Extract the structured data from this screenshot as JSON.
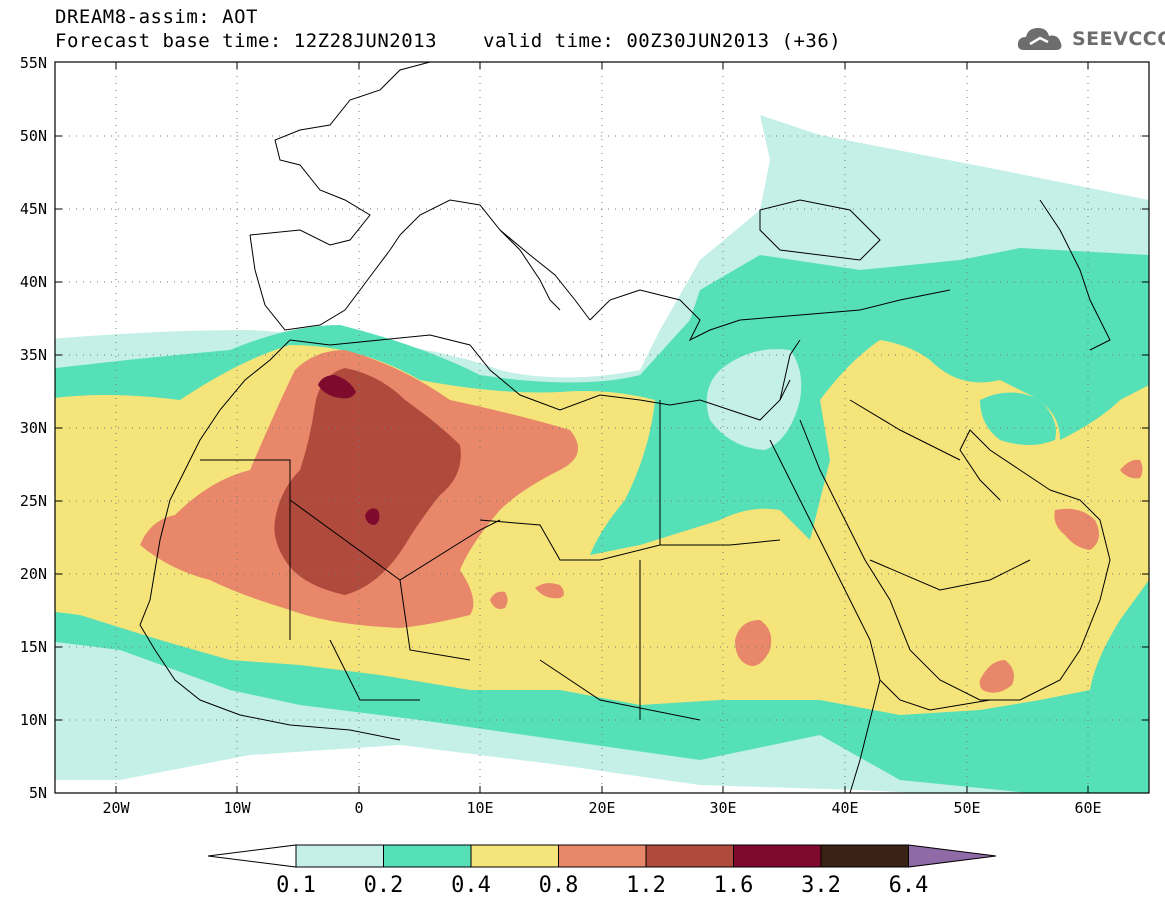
{
  "header": {
    "line1": "DREAM8-assim: AOT",
    "base_label": "Forecast base time: 12Z28JUN2013",
    "valid_label": "valid time: 00Z30JUN2013 (+36)"
  },
  "logo": {
    "text": "SEEVCCC",
    "icon": "cloud-icon"
  },
  "map": {
    "lat_labels": [
      "55N",
      "50N",
      "45N",
      "40N",
      "35N",
      "30N",
      "25N",
      "20N",
      "15N",
      "10N",
      "5N"
    ],
    "lon_labels": [
      "20W",
      "10W",
      "0",
      "10E",
      "20E",
      "30E",
      "40E",
      "50E",
      "60E"
    ]
  },
  "colorbar": {
    "labels": [
      "0.1",
      "0.2",
      "0.4",
      "0.8",
      "1.2",
      "1.6",
      "3.2",
      "6.4"
    ],
    "colors": [
      "#c4f0e8",
      "#56e0b8",
      "#f4e47a",
      "#e8876a",
      "#b04a3c",
      "#7e0a2e",
      "#3a2316",
      "#8e6aa6"
    ]
  },
  "colors": {
    "c1": "#c4f0e8",
    "c2": "#56e0b8",
    "c3": "#f4e47a",
    "c4": "#e8876a",
    "c5": "#b04a3c",
    "c6": "#7e0a2e"
  }
}
